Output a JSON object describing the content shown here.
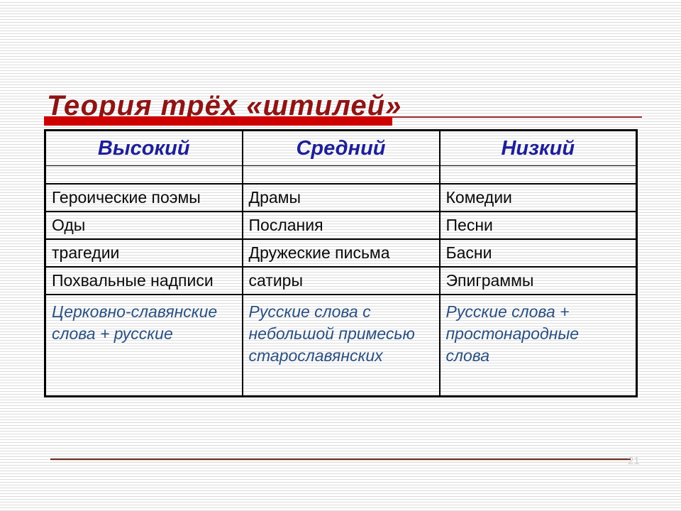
{
  "slide": {
    "title": "Теория трёх «штилей»",
    "slide_number": "21"
  },
  "table": {
    "headers": [
      "Высокий",
      "Средний",
      "Низкий"
    ],
    "rows": [
      [
        "Героические поэмы",
        "Драмы",
        "Комедии"
      ],
      [
        "Оды",
        "Послания",
        "Песни"
      ],
      [
        "трагедии",
        "Дружеские письма",
        "Басни"
      ],
      [
        "Похвальные надписи",
        "сатиры",
        "Эпиграммы"
      ]
    ],
    "language_row": [
      "Церковно-славянские слова + русские",
      "Русские слова с небольшой примесью старославянских",
      "Русские слова + простонародные слова"
    ]
  },
  "colors": {
    "title_red": "#8e1414",
    "bar_red": "#cf0000",
    "thin_rule_red": "#a12f2f",
    "header_navy": "#1f1f96",
    "language_blue": "#2a5080",
    "bottom_rule_maroon": "#5f2b20",
    "stripe_gray": "#dcdcdc",
    "table_border": "#000000"
  }
}
